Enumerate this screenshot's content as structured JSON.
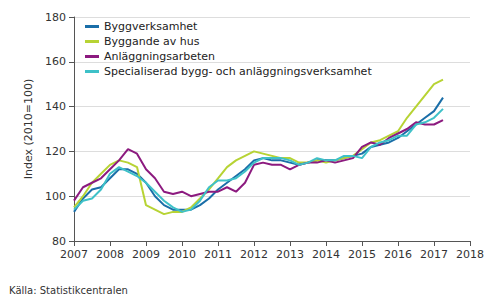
{
  "chart_data": {
    "type": "line",
    "y_label": "Index (2010=100)",
    "source": "Källa: Statistikcentralen",
    "x": [
      2007,
      2007.25,
      2007.5,
      2007.75,
      2008,
      2008.25,
      2008.5,
      2008.75,
      2009,
      2009.25,
      2009.5,
      2009.75,
      2010,
      2010.25,
      2010.5,
      2010.75,
      2011,
      2011.25,
      2011.5,
      2011.75,
      2012,
      2012.25,
      2012.5,
      2012.75,
      2013,
      2013.25,
      2013.5,
      2013.75,
      2014,
      2014.25,
      2014.5,
      2014.75,
      2015,
      2015.25,
      2015.5,
      2015.75,
      2016,
      2016.25,
      2016.5,
      2016.75,
      2017,
      2017.25
    ],
    "series": [
      {
        "name": "Byggverksamhet",
        "color": "#1a6ea8",
        "values": [
          93,
          99,
          103,
          104,
          108,
          112,
          112,
          110,
          106,
          100,
          96,
          94,
          94,
          94,
          96,
          99,
          103,
          106,
          109,
          112,
          116,
          117,
          116,
          116,
          115,
          114,
          115,
          116,
          116,
          116,
          117,
          118,
          119,
          122,
          123,
          124,
          126,
          129,
          132,
          135,
          138,
          144
        ]
      },
      {
        "name": "Byggande av hus",
        "color": "#b7d334",
        "values": [
          95,
          100,
          106,
          110,
          114,
          116,
          115,
          113,
          96,
          94,
          92,
          93,
          93,
          95,
          99,
          103,
          108,
          113,
          116,
          118,
          120,
          119,
          118,
          117,
          117,
          115,
          115,
          116,
          115,
          116,
          117,
          118,
          121,
          124,
          125,
          127,
          129,
          135,
          140,
          145,
          150,
          152
        ]
      },
      {
        "name": "Anläggningsarbeten",
        "color": "#8c1a7f",
        "values": [
          98,
          104,
          106,
          108,
          112,
          116,
          121,
          119,
          112,
          108,
          102,
          101,
          102,
          100,
          101,
          102,
          102,
          104,
          102,
          106,
          114,
          115,
          114,
          114,
          112,
          114,
          115,
          115,
          116,
          115,
          116,
          117,
          122,
          124,
          123,
          126,
          128,
          130,
          133,
          132,
          132,
          134
        ]
      },
      {
        "name": "Specialiserad bygg- och anläggningsverksamhet",
        "color": "#3ec1c8",
        "values": [
          94,
          98,
          99,
          103,
          110,
          113,
          111,
          109,
          106,
          102,
          98,
          95,
          93,
          94,
          98,
          104,
          107,
          107,
          108,
          111,
          115,
          117,
          117,
          117,
          116,
          114,
          115,
          117,
          116,
          116,
          118,
          118,
          117,
          122,
          124,
          125,
          127,
          127,
          132,
          133,
          135,
          139
        ]
      }
    ],
    "xlim": [
      2007,
      2018
    ],
    "xticks": [
      2007,
      2008,
      2009,
      2010,
      2011,
      2012,
      2013,
      2014,
      2015,
      2016,
      2017,
      2018
    ],
    "ylim": [
      80,
      180
    ],
    "yticks": [
      80,
      100,
      120,
      140,
      160,
      180
    ],
    "grid": true,
    "legend": "top-left"
  }
}
